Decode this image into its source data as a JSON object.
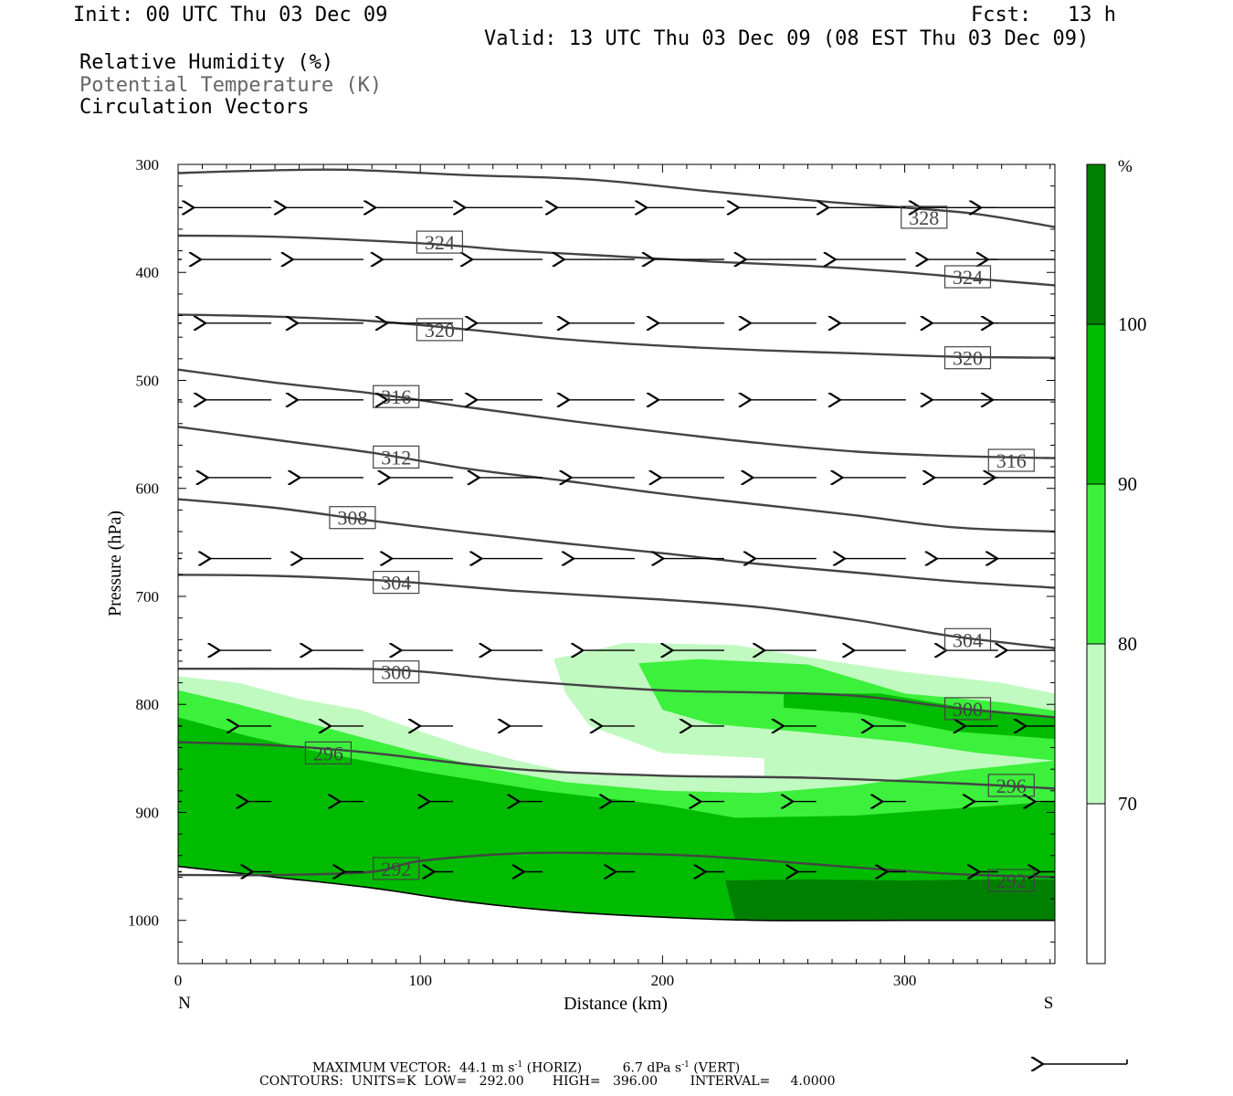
{
  "header": {
    "init": "Init: 00 UTC Thu 03 Dec 09",
    "fcst": "Fcst:   13 h",
    "valid": "Valid: 13 UTC Thu 03 Dec 09 (08 EST Thu 03 Dec 09)",
    "fields": [
      "Relative Humidity (%)",
      "Potential Temperature (K)",
      "Circulation Vectors"
    ]
  },
  "chart_data": {
    "type": "cross-section",
    "xlabel": "Distance (km)",
    "ylabel": "Pressure (hPa)",
    "xlim": [
      0,
      362
    ],
    "ylim": [
      300,
      1040
    ],
    "x_ticks": [
      0,
      100,
      200,
      300
    ],
    "y_ticks": [
      300,
      400,
      500,
      600,
      700,
      800,
      900,
      1000
    ],
    "x_end_labels": {
      "left": "N",
      "right": "S"
    },
    "colorbar": {
      "unit": "%",
      "levels": [
        70,
        80,
        90,
        100
      ],
      "colors": [
        "#ffffff",
        "#c0fac0",
        "#3cf03c",
        "#00bb00",
        "#008000"
      ]
    },
    "theta_contours": [
      {
        "value": 328,
        "labels": [
          [
            308,
            349
          ]
        ],
        "points": [
          [
            0,
            308
          ],
          [
            30,
            306
          ],
          [
            70,
            305
          ],
          [
            120,
            310
          ],
          [
            170,
            314
          ],
          [
            220,
            325
          ],
          [
            270,
            335
          ],
          [
            300,
            340
          ],
          [
            330,
            346
          ],
          [
            362,
            358
          ]
        ]
      },
      {
        "value": 324,
        "labels": [
          [
            108,
            372
          ],
          [
            326,
            404
          ]
        ],
        "points": [
          [
            0,
            366
          ],
          [
            40,
            367
          ],
          [
            100,
            373
          ],
          [
            140,
            380
          ],
          [
            180,
            385
          ],
          [
            220,
            390
          ],
          [
            260,
            394
          ],
          [
            300,
            400
          ],
          [
            330,
            406
          ],
          [
            362,
            412
          ]
        ]
      },
      {
        "value": 320,
        "labels": [
          [
            108,
            453
          ],
          [
            326,
            479
          ]
        ],
        "points": [
          [
            0,
            439
          ],
          [
            40,
            441
          ],
          [
            80,
            445
          ],
          [
            120,
            453
          ],
          [
            160,
            462
          ],
          [
            200,
            468
          ],
          [
            240,
            472
          ],
          [
            280,
            475
          ],
          [
            320,
            478
          ],
          [
            362,
            479
          ]
        ]
      },
      {
        "value": 316,
        "labels": [
          [
            90,
            515
          ],
          [
            344,
            574
          ]
        ],
        "points": [
          [
            0,
            490
          ],
          [
            40,
            502
          ],
          [
            80,
            512
          ],
          [
            120,
            525
          ],
          [
            160,
            537
          ],
          [
            200,
            548
          ],
          [
            240,
            558
          ],
          [
            280,
            566
          ],
          [
            320,
            570
          ],
          [
            362,
            572
          ]
        ]
      },
      {
        "value": 312,
        "labels": [
          [
            90,
            571
          ]
        ],
        "points": [
          [
            0,
            543
          ],
          [
            40,
            555
          ],
          [
            80,
            567
          ],
          [
            120,
            582
          ],
          [
            160,
            593
          ],
          [
            200,
            605
          ],
          [
            240,
            615
          ],
          [
            280,
            625
          ],
          [
            320,
            636
          ],
          [
            362,
            640
          ]
        ]
      },
      {
        "value": 308,
        "labels": [
          [
            72,
            627
          ]
        ],
        "points": [
          [
            0,
            610
          ],
          [
            40,
            618
          ],
          [
            80,
            630
          ],
          [
            120,
            641
          ],
          [
            160,
            651
          ],
          [
            200,
            660
          ],
          [
            240,
            670
          ],
          [
            280,
            678
          ],
          [
            320,
            686
          ],
          [
            362,
            692
          ]
        ]
      },
      {
        "value": 304,
        "labels": [
          [
            90,
            687
          ],
          [
            326,
            740
          ]
        ],
        "points": [
          [
            0,
            680
          ],
          [
            40,
            681
          ],
          [
            90,
            686
          ],
          [
            140,
            695
          ],
          [
            200,
            703
          ],
          [
            240,
            710
          ],
          [
            280,
            722
          ],
          [
            320,
            737
          ],
          [
            362,
            748
          ]
        ]
      },
      {
        "value": 300,
        "labels": [
          [
            90,
            770
          ],
          [
            326,
            804
          ]
        ],
        "points": [
          [
            0,
            767
          ],
          [
            40,
            767
          ],
          [
            90,
            768
          ],
          [
            140,
            778
          ],
          [
            200,
            787
          ],
          [
            240,
            789
          ],
          [
            280,
            792
          ],
          [
            320,
            803
          ],
          [
            362,
            812
          ]
        ]
      },
      {
        "value": 296,
        "labels": [
          [
            62,
            845
          ],
          [
            344,
            875
          ]
        ],
        "points": [
          [
            0,
            835
          ],
          [
            40,
            838
          ],
          [
            80,
            845
          ],
          [
            140,
            860
          ],
          [
            200,
            866
          ],
          [
            260,
            868
          ],
          [
            320,
            873
          ],
          [
            362,
            878
          ]
        ]
      },
      {
        "value": 292,
        "labels": [
          [
            90,
            952
          ],
          [
            344,
            963
          ]
        ],
        "points": [
          [
            0,
            958
          ],
          [
            40,
            958
          ],
          [
            80,
            955
          ],
          [
            100,
            945
          ],
          [
            140,
            938
          ],
          [
            180,
            938
          ],
          [
            220,
            941
          ],
          [
            280,
            951
          ],
          [
            320,
            957
          ],
          [
            362,
            960
          ]
        ]
      }
    ],
    "ground_line": [
      [
        0,
        950
      ],
      [
        40,
        960
      ],
      [
        80,
        970
      ],
      [
        120,
        983
      ],
      [
        160,
        992
      ],
      [
        200,
        997
      ],
      [
        240,
        1000
      ],
      [
        300,
        1000
      ],
      [
        362,
        1000
      ]
    ],
    "rh_regions": [
      {
        "level": 70,
        "points": [
          [
            0,
            774
          ],
          [
            25,
            780
          ],
          [
            50,
            795
          ],
          [
            75,
            805
          ],
          [
            100,
            825
          ],
          [
            120,
            840
          ],
          [
            140,
            852
          ],
          [
            160,
            862
          ],
          [
            190,
            866
          ],
          [
            242,
            866
          ],
          [
            242,
            850
          ],
          [
            200,
            845
          ],
          [
            170,
            820
          ],
          [
            160,
            790
          ],
          [
            155,
            758
          ],
          [
            185,
            743
          ],
          [
            230,
            745
          ],
          [
            270,
            760
          ],
          [
            300,
            770
          ],
          [
            340,
            780
          ],
          [
            362,
            790
          ],
          [
            362,
            1000
          ],
          [
            0,
            950
          ]
        ]
      },
      {
        "level": 80,
        "points": [
          [
            0,
            787
          ],
          [
            25,
            800
          ],
          [
            50,
            815
          ],
          [
            75,
            830
          ],
          [
            100,
            845
          ],
          [
            130,
            860
          ],
          [
            160,
            872
          ],
          [
            200,
            880
          ],
          [
            240,
            882
          ],
          [
            280,
            875
          ],
          [
            320,
            862
          ],
          [
            362,
            852
          ],
          [
            362,
            1000
          ],
          [
            0,
            950
          ]
        ]
      },
      {
        "level": 80,
        "points": [
          [
            190,
            762
          ],
          [
            215,
            758
          ],
          [
            260,
            763
          ],
          [
            300,
            790
          ],
          [
            340,
            798
          ],
          [
            362,
            806
          ],
          [
            362,
            852
          ],
          [
            330,
            845
          ],
          [
            300,
            835
          ],
          [
            260,
            826
          ],
          [
            220,
            818
          ],
          [
            200,
            805
          ]
        ]
      },
      {
        "level": 90,
        "points": [
          [
            0,
            812
          ],
          [
            30,
            830
          ],
          [
            60,
            845
          ],
          [
            100,
            862
          ],
          [
            150,
            880
          ],
          [
            200,
            893
          ],
          [
            230,
            905
          ],
          [
            280,
            903
          ],
          [
            330,
            895
          ],
          [
            362,
            890
          ],
          [
            362,
            1000
          ],
          [
            240,
            1000
          ],
          [
            200,
            997
          ],
          [
            160,
            992
          ],
          [
            120,
            983
          ],
          [
            80,
            970
          ],
          [
            40,
            960
          ],
          [
            0,
            950
          ]
        ]
      },
      {
        "level": 90,
        "points": [
          [
            250,
            790
          ],
          [
            290,
            790
          ],
          [
            330,
            805
          ],
          [
            362,
            812
          ],
          [
            362,
            832
          ],
          [
            320,
            825
          ],
          [
            280,
            808
          ],
          [
            250,
            803
          ]
        ]
      },
      {
        "level": 100,
        "points": [
          [
            226,
            963
          ],
          [
            260,
            962
          ],
          [
            300,
            963
          ],
          [
            340,
            962
          ],
          [
            362,
            962
          ],
          [
            362,
            1000
          ],
          [
            230,
            1000
          ]
        ]
      }
    ],
    "vectors": [
      {
        "p": 340,
        "x": [
          0,
          37,
          75,
          112,
          149,
          187,
          224,
          262,
          299,
          337,
          362
        ],
        "dx": -33
      },
      {
        "p": 388,
        "x": [
          0,
          37,
          75,
          112,
          149,
          187,
          224,
          262,
          299,
          337,
          362
        ],
        "dx": -30
      },
      {
        "p": 447,
        "x": [
          0,
          37,
          75,
          112,
          149,
          187,
          224,
          262,
          299,
          337,
          362
        ],
        "dx": -28
      },
      {
        "p": 518,
        "x": [
          0,
          37,
          75,
          112,
          149,
          187,
          224,
          262,
          299,
          337,
          362
        ],
        "dx": -28
      },
      {
        "p": 590,
        "x": [
          0,
          37,
          75,
          112,
          149,
          187,
          224,
          262,
          299,
          337,
          362
        ],
        "dx": -27
      },
      {
        "p": 665,
        "x": [
          0,
          37,
          75,
          112,
          149,
          187,
          224,
          262,
          299,
          337,
          362
        ],
        "dx": -26
      },
      {
        "p": 750,
        "x": [
          0,
          37,
          75,
          112,
          149,
          187,
          224,
          262,
          299,
          337,
          362
        ],
        "dx": -22
      },
      {
        "p": 820,
        "x": [
          0,
          37,
          75,
          112,
          149,
          187,
          224,
          262,
          299,
          337,
          362
        ],
        "dx": -14
      },
      {
        "p": 890,
        "x": [
          0,
          37,
          75,
          112,
          149,
          187,
          224,
          262,
          299,
          337,
          362
        ],
        "dx": -10
      },
      {
        "p": 955,
        "x": [
          0,
          37,
          75,
          112,
          149,
          187,
          224,
          262,
          299,
          337,
          362
        ],
        "dx": -8
      }
    ]
  },
  "footer": {
    "line1": {
      "label": "MAXIMUM VECTOR:",
      "horiz": "44.1 m s",
      "horiz_exp": "-1",
      "horiz_tag": "(HORIZ)",
      "vert": "6.7 dPa s",
      "vert_exp": "-1",
      "vert_tag": "(VERT)"
    },
    "line2": "CONTOURS:  UNITS=K  LOW=   292.00       HIGH=   396.00        INTERVAL=     4.0000"
  }
}
